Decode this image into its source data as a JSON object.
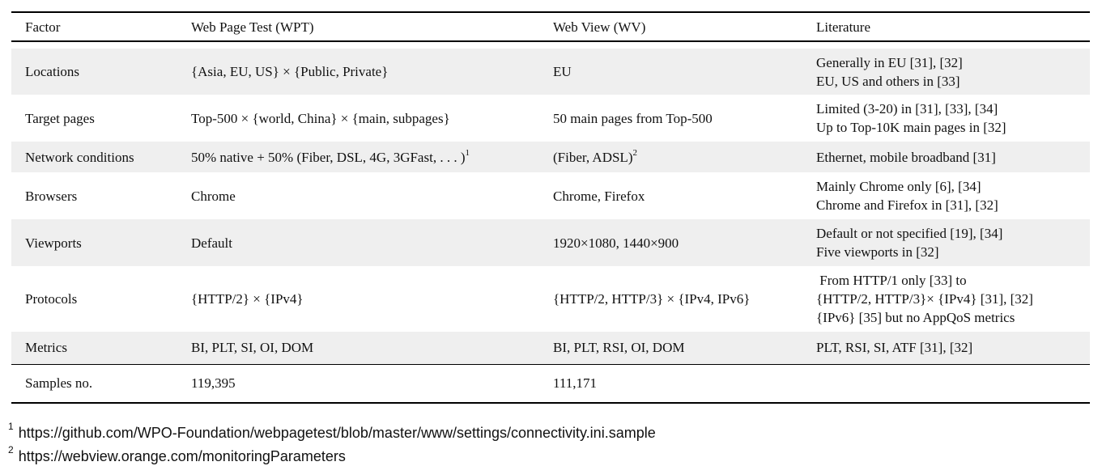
{
  "table": {
    "headers": [
      "Factor",
      "Web Page Test (WPT)",
      "Web View (WV)",
      "Literature"
    ],
    "rows": [
      {
        "factor": "Locations",
        "wpt": "{Asia, EU, US} × {Public, Private}",
        "wv": "EU",
        "literature": [
          "Generally in EU [31], [32]",
          "EU, US and others in [33]"
        ]
      },
      {
        "factor": "Target pages",
        "wpt": "Top-500 × {world, China} × {main, subpages}",
        "wv": "50 main pages from Top-500",
        "literature": [
          "Limited (3-20) in [31], [33], [34]",
          "Up to Top-10K main pages in [32]"
        ]
      },
      {
        "factor": "Network conditions",
        "wpt": "50% native + 50% (Fiber, DSL, 4G, 3GFast, . . . )",
        "wpt_sup": "1",
        "wv": "(Fiber, ADSL)",
        "wv_sup": "2",
        "literature": [
          "Ethernet, mobile broadband [31]"
        ]
      },
      {
        "factor": "Browsers",
        "wpt": "Chrome",
        "wv": "Chrome, Firefox",
        "literature": [
          "Mainly Chrome only [6], [34]",
          "Chrome and Firefox in [31], [32]"
        ]
      },
      {
        "factor": "Viewports",
        "wpt": "Default",
        "wv": "1920×1080, 1440×900",
        "literature": [
          "Default or not specified [19], [34]",
          "Five viewports in [32]"
        ]
      },
      {
        "factor": "Protocols",
        "wpt": "{HTTP/2} × {IPv4}",
        "wv": "{HTTP/2, HTTP/3} × {IPv4, IPv6}",
        "literature": [
          " From HTTP/1 only [33] to",
          "{HTTP/2, HTTP/3}× {IPv4} [31], [32]",
          "{IPv6} [35] but no AppQoS metrics"
        ]
      },
      {
        "factor": "Metrics",
        "wpt": "BI, PLT, SI, OI, DOM",
        "wv": "BI, PLT, RSI, OI, DOM",
        "literature": [
          "PLT, RSI, SI, ATF [31], [32]"
        ]
      }
    ],
    "samples": {
      "factor": "Samples no.",
      "wpt": "119,395",
      "wv": "111,171",
      "literature": ""
    }
  },
  "footnotes": [
    {
      "mark": "1",
      "text": "https://github.com/WPO-Foundation/webpagetest/blob/master/www/settings/connectivity.ini.sample"
    },
    {
      "mark": "2",
      "text": "https://webview.orange.com/monitoringParameters"
    }
  ]
}
